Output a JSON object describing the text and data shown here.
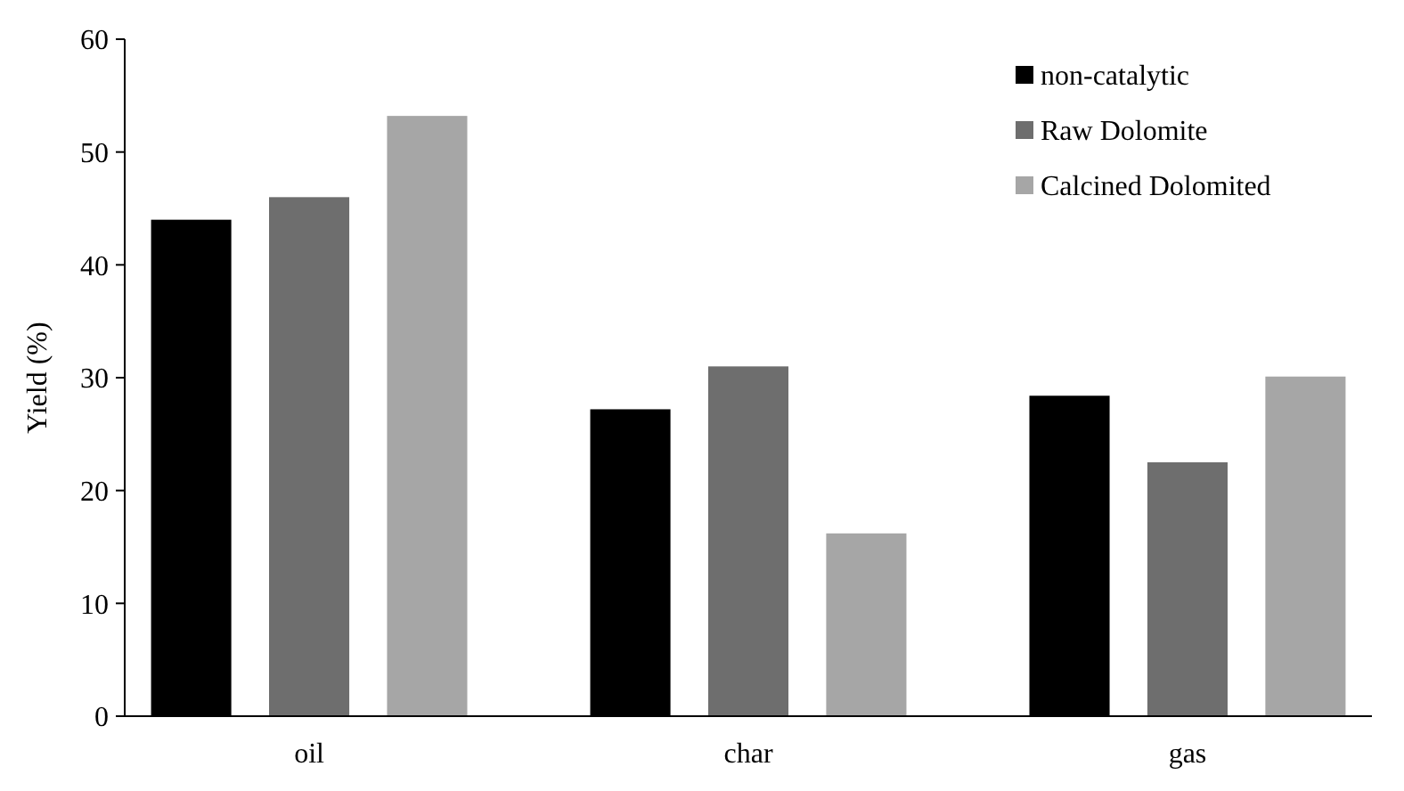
{
  "chart_data": {
    "type": "bar",
    "ylabel": "Yield (%)",
    "categories": [
      "oil",
      "char",
      "gas"
    ],
    "series": [
      {
        "name": "non-catalytic",
        "color": "#000000",
        "values": [
          44.0,
          27.2,
          28.4
        ]
      },
      {
        "name": "Raw Dolomite",
        "color": "#6e6e6e",
        "values": [
          46.0,
          31.0,
          22.5
        ]
      },
      {
        "name": "Calcined Dolomited",
        "color": "#a6a6a6",
        "values": [
          53.2,
          16.2,
          30.1
        ]
      }
    ],
    "ylim": [
      0,
      60
    ],
    "yticks": [
      0,
      10,
      20,
      30,
      40,
      50,
      60
    ],
    "grid": false,
    "legend": "top right"
  }
}
